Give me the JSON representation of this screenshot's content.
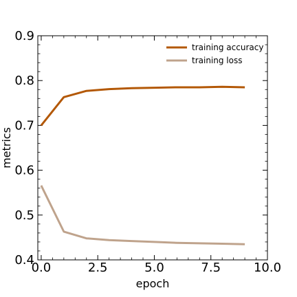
{
  "chart_data": {
    "type": "line",
    "xlabel": "epoch",
    "ylabel": "metrics",
    "xlim": [
      -0.15,
      10.0
    ],
    "ylim": [
      0.4,
      0.9
    ],
    "xticks": [
      0.0,
      2.5,
      5.0,
      7.5,
      10.0
    ],
    "xtick_labels": [
      "0.0",
      "2.5",
      "5.0",
      "7.5",
      "10.0"
    ],
    "yticks": [
      0.4,
      0.5,
      0.6,
      0.7,
      0.8,
      0.9
    ],
    "ytick_labels": [
      "0.4",
      "0.5",
      "0.6",
      "0.7",
      "0.8",
      "0.9"
    ],
    "grid": false,
    "legend_position": "top-right",
    "series": [
      {
        "name": "training accuracy",
        "color": "#b35806",
        "x": [
          0,
          1,
          2,
          3,
          4,
          5,
          6,
          7,
          8,
          9
        ],
        "values": [
          0.7,
          0.763,
          0.777,
          0.781,
          0.783,
          0.784,
          0.785,
          0.785,
          0.786,
          0.785
        ]
      },
      {
        "name": "training loss",
        "color": "#bfa38c",
        "x": [
          0,
          1,
          2,
          3,
          4,
          5,
          6,
          7,
          8,
          9
        ],
        "values": [
          0.566,
          0.463,
          0.448,
          0.444,
          0.442,
          0.44,
          0.438,
          0.437,
          0.436,
          0.435
        ]
      }
    ]
  }
}
